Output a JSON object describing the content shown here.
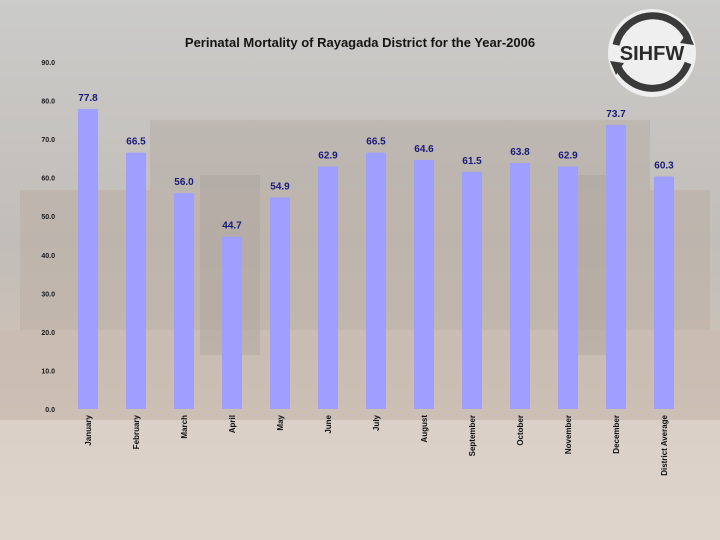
{
  "logo_text": "SIHFW",
  "chart_data": {
    "type": "bar",
    "title": "Perinatal Mortality of Rayagada District for the Year-2006",
    "xlabel": "",
    "ylabel": "",
    "ylim": [
      0,
      90
    ],
    "yticks": [
      "0.0",
      "10.0",
      "20.0",
      "30.0",
      "40.0",
      "50.0",
      "60.0",
      "70.0",
      "80.0",
      "90.0"
    ],
    "grid": false,
    "categories": [
      "January",
      "February",
      "March",
      "April",
      "May",
      "June",
      "July",
      "August",
      "September",
      "October",
      "November",
      "December",
      "District Average"
    ],
    "values": [
      77.8,
      66.5,
      56.0,
      44.7,
      54.9,
      62.9,
      66.5,
      64.6,
      61.5,
      63.8,
      62.9,
      73.7,
      60.3
    ],
    "value_labels": [
      "77.8",
      "66.5",
      "56.0",
      "44.7",
      "54.9",
      "62.9",
      "66.5",
      "64.6",
      "61.5",
      "63.8",
      "62.9",
      "73.7",
      "60.3"
    ]
  },
  "colors": {
    "bar": "#9f9fff",
    "value_label": "#1a1a78"
  }
}
